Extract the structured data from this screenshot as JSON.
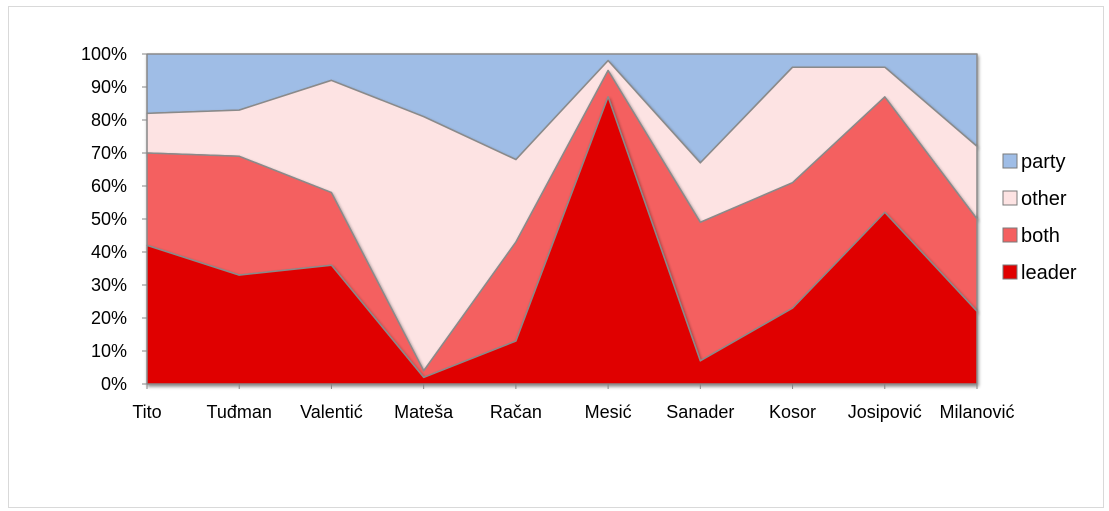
{
  "chart_data": {
    "type": "area",
    "stacked": "percent",
    "categories": [
      "Tito",
      "Tuđman",
      "Valentić",
      "Mateša",
      "Račan",
      "Mesić",
      "Sanader",
      "Kosor",
      "Josipović",
      "Milanović"
    ],
    "series": [
      {
        "name": "leader",
        "color": "#e00000",
        "values": [
          42,
          33,
          36,
          2,
          13,
          87,
          7,
          23,
          52,
          22
        ]
      },
      {
        "name": "both",
        "color": "#f46060",
        "values": [
          28,
          36,
          22,
          2,
          30,
          8,
          42,
          38,
          35,
          28
        ]
      },
      {
        "name": "other",
        "color": "#fde3e3",
        "values": [
          12,
          14,
          34,
          77,
          25,
          3,
          18,
          35,
          9,
          22
        ]
      },
      {
        "name": "party",
        "color": "#9fbde6",
        "values": [
          18,
          17,
          8,
          19,
          32,
          2,
          33,
          4,
          4,
          28
        ]
      }
    ],
    "yticks": [
      "0%",
      "10%",
      "20%",
      "30%",
      "40%",
      "50%",
      "60%",
      "70%",
      "80%",
      "90%",
      "100%"
    ],
    "ylim": [
      0,
      100
    ],
    "legend_position": "right",
    "legend_order": [
      "party",
      "other",
      "both",
      "leader"
    ],
    "grid": false
  }
}
